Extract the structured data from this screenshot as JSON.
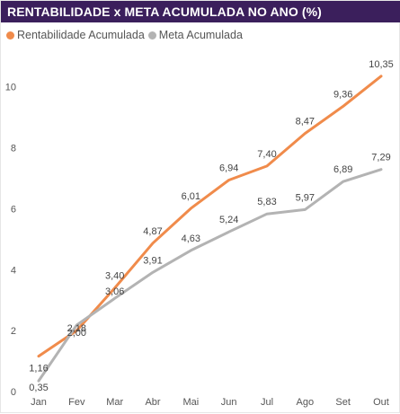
{
  "header": {
    "title": "RENTABILIDADE x META ACUMULADA NO ANO (%)"
  },
  "chart_data": {
    "type": "line",
    "title": "RENTABILIDADE x META ACUMULADA NO ANO (%)",
    "categories": [
      "Jan",
      "Fev",
      "Mar",
      "Abr",
      "Mai",
      "Jun",
      "Jul",
      "Ago",
      "Set",
      "Out"
    ],
    "series": [
      {
        "name": "Rentabilidade Acumulada",
        "color": "#f08b4b",
        "values": [
          1.16,
          2.0,
          3.4,
          4.87,
          6.01,
          6.94,
          7.4,
          8.47,
          9.36,
          10.35
        ],
        "labels": [
          "1,16",
          "2,00",
          "3,40",
          "4,87",
          "6,01",
          "6,94",
          "7,40",
          "8,47",
          "9,36",
          "10,35"
        ]
      },
      {
        "name": "Meta Acumulada",
        "color": "#b3b3b3",
        "values": [
          0.35,
          2.18,
          3.06,
          3.91,
          4.63,
          5.24,
          5.83,
          5.97,
          6.89,
          7.29
        ],
        "labels": [
          "0,35",
          "2,18",
          "3,06",
          "3,91",
          "4,63",
          "5,24",
          "5,83",
          "5,97",
          "6,89",
          "7,29"
        ]
      }
    ],
    "yticks": [
      0,
      2,
      4,
      6,
      8,
      10
    ],
    "ylim": [
      0,
      11.2
    ],
    "xlabel": "",
    "ylabel": "",
    "grid": false,
    "legend": "top-left"
  }
}
